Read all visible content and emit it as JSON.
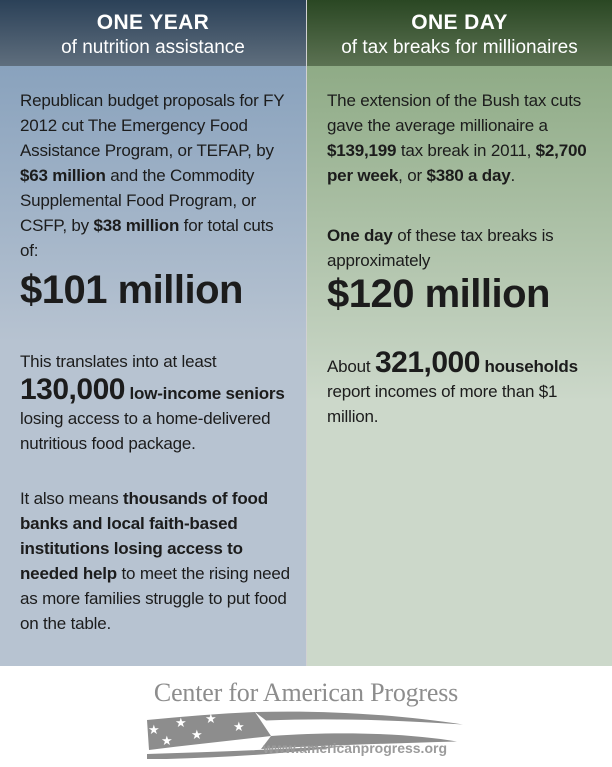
{
  "left": {
    "header": {
      "title": "ONE YEAR",
      "subtitle": "of nutrition assistance"
    },
    "p1": [
      {
        "t": "Republican budget proposals for FY 2012 cut The Emergency Food Assistance Program, or TEFAP, by "
      },
      {
        "t": "$63 million",
        "b": true
      },
      {
        "t": " and the Commodity Supplemental Food Program, or CSFP, by "
      },
      {
        "t": "$38 million",
        "b": true
      },
      {
        "t": " for total cuts of:"
      }
    ],
    "big_number": "$101 million",
    "p2": [
      {
        "t": "This translates into at least "
      },
      {
        "t": "130,000",
        "b": true,
        "big": true
      },
      {
        "t": " "
      },
      {
        "t": "low-income seniors",
        "b": true
      },
      {
        "t": " losing access to a home-delivered nutritious food package."
      }
    ],
    "p3": [
      {
        "t": "It also means "
      },
      {
        "t": "thousands of food banks and local faith-based institutions losing access to needed help",
        "b": true
      },
      {
        "t": " to meet the rising need as more families struggle to put food on the table."
      }
    ]
  },
  "right": {
    "header": {
      "title": "ONE DAY",
      "subtitle": "of tax breaks for millionaires"
    },
    "p1": [
      {
        "t": "The extension of the Bush tax cuts gave the average millionaire a "
      },
      {
        "t": "$139,199",
        "b": true
      },
      {
        "t": " tax break in 2011, "
      },
      {
        "t": "$2,700 per week",
        "b": true
      },
      {
        "t": ", or "
      },
      {
        "t": "$380 a day",
        "b": true
      },
      {
        "t": "."
      }
    ],
    "p2": [
      {
        "t": "One day",
        "b": true
      },
      {
        "t": " of these tax breaks is approximately"
      }
    ],
    "big_number": "$120 million",
    "p3": [
      {
        "t": "About "
      },
      {
        "t": "321,000",
        "b": true,
        "big": true
      },
      {
        "t": " "
      },
      {
        "t": "households",
        "b": true
      },
      {
        "t": " report incomes of more than $1 million."
      }
    ]
  },
  "footer": {
    "logo_text": "Center for American Progress",
    "url": "www.americanprogress.org",
    "star_glyph": "★"
  },
  "colors": {
    "left_header_top": "#2b4158",
    "left_header_bottom": "#5f6e7d",
    "left_body_top": "#89a2bd",
    "left_body_light": "#b7c3d1",
    "right_header_top": "#2a4723",
    "right_header_bottom": "#5c7253",
    "right_body_top": "#8fab86",
    "right_body_light": "#ccd8ca",
    "header_text": "#ffffff",
    "text": "#1c1c1c",
    "logo_gray": "#8d8d8d",
    "url_gray": "#9b9b9b",
    "footer_bg": "#ffffff"
  }
}
